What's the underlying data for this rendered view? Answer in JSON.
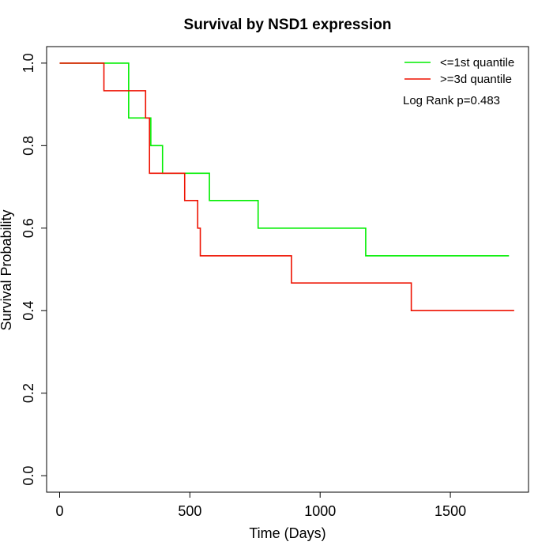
{
  "chart_data": {
    "type": "line",
    "title": "Survival by NSD1 expression",
    "xlabel": "Time (Days)",
    "ylabel": "Survival Probability",
    "xlim": [
      -50,
      1800
    ],
    "ylim": [
      -0.04,
      1.04
    ],
    "x_ticks": [
      0,
      500,
      1000,
      1500
    ],
    "y_ticks": [
      0.0,
      0.2,
      0.4,
      0.6,
      0.8,
      1.0
    ],
    "x_tick_labels": [
      "0",
      "500",
      "1000",
      "1500"
    ],
    "y_tick_labels": [
      "0.0",
      "0.2",
      "0.4",
      "0.6",
      "0.8",
      "1.0"
    ],
    "grid": false,
    "legend_position": "top-right",
    "annotation": "Log Rank p=0.483",
    "series": [
      {
        "name": "<=1st quantile",
        "color": "#00ee00",
        "step": true,
        "x": [
          0,
          255,
          265,
          345,
          350,
          390,
          395,
          575,
          762,
          1175,
          1725
        ],
        "y": [
          1.0,
          1.0,
          0.867,
          0.867,
          0.8,
          0.8,
          0.733,
          0.667,
          0.6,
          0.533,
          0.533
        ]
      },
      {
        "name": ">=3d quantile",
        "color": "#ee1100",
        "step": true,
        "x": [
          0,
          170,
          330,
          340,
          345,
          480,
          530,
          535,
          540,
          890,
          1350,
          1745
        ],
        "y": [
          1.0,
          0.933,
          0.867,
          0.867,
          0.733,
          0.667,
          0.6,
          0.6,
          0.533,
          0.467,
          0.4,
          0.4
        ]
      }
    ]
  }
}
